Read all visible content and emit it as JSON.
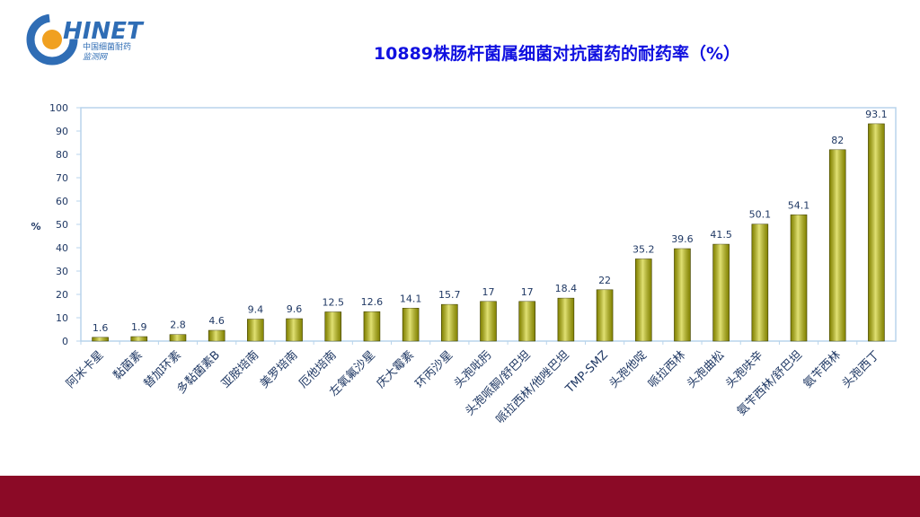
{
  "logo": {
    "brand": "HINET",
    "line1": "中国细菌耐药",
    "line2": "监测网"
  },
  "chart_data": {
    "type": "bar",
    "title": "10889株肠杆菌属细菌对抗菌药的耐药率（%）",
    "y_label": "%",
    "categories": [
      "阿米卡星",
      "黏菌素",
      "替加环素",
      "多黏菌素B",
      "亚胺培南",
      "美罗培南",
      "厄他培南",
      "左氧氟沙星",
      "庆大霉素",
      "环丙沙星",
      "头孢吡肟",
      "头孢哌酮/舒巴坦",
      "哌拉西林/他唑巴坦",
      "TMP-SMZ",
      "头孢他啶",
      "哌拉西林",
      "头孢曲松",
      "头孢呋辛",
      "氨苄西林/舒巴坦",
      "氨苄西林",
      "头孢西丁"
    ],
    "values": [
      1.6,
      1.9,
      2.8,
      4.6,
      9.4,
      9.6,
      12.5,
      12.6,
      14.1,
      15.7,
      17,
      17,
      18.4,
      22,
      35.2,
      39.6,
      41.5,
      50.1,
      54.1,
      82,
      93.1
    ],
    "color": "#c8c800",
    "ylim": [
      0,
      100
    ],
    "yticks": [
      0,
      10,
      20,
      30,
      40,
      50,
      60,
      70,
      80,
      90,
      100
    ]
  }
}
